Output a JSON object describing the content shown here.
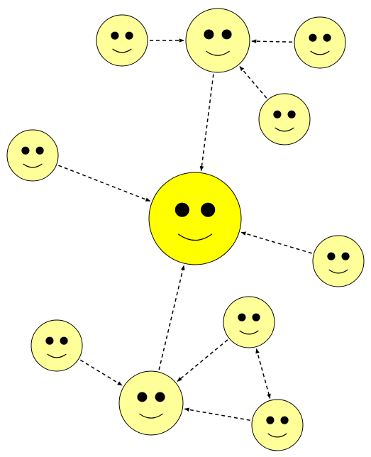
{
  "diagram": {
    "kind": "social-influence-network",
    "colors": {
      "hub_fill": "#FFFF00",
      "node_fill": "#FFFF99",
      "stroke": "#000000",
      "edge": "#000000"
    },
    "nodes": [
      {
        "id": "center",
        "icon": "smiley-face-icon",
        "role": "central-hub"
      },
      {
        "id": "top-hub",
        "icon": "smiley-face-icon",
        "role": "sub-hub"
      },
      {
        "id": "top-left",
        "icon": "smiley-face-icon",
        "role": "person"
      },
      {
        "id": "top-right",
        "icon": "smiley-face-icon",
        "role": "person"
      },
      {
        "id": "top-lower-right",
        "icon": "smiley-face-icon",
        "role": "person"
      },
      {
        "id": "mid-left",
        "icon": "smiley-face-icon",
        "role": "person"
      },
      {
        "id": "mid-right",
        "icon": "smiley-face-icon",
        "role": "person"
      },
      {
        "id": "bottom-hub",
        "icon": "smiley-face-icon",
        "role": "sub-hub"
      },
      {
        "id": "bottom-left",
        "icon": "smiley-face-icon",
        "role": "person"
      },
      {
        "id": "bottom-mid",
        "icon": "smiley-face-icon",
        "role": "person"
      },
      {
        "id": "bottom-right",
        "icon": "smiley-face-icon",
        "role": "person"
      }
    ],
    "edges": [
      {
        "from": "top-left",
        "to": "top-hub",
        "style": "dashed",
        "direction": "forward"
      },
      {
        "from": "top-right",
        "to": "top-hub",
        "style": "dashed",
        "direction": "forward"
      },
      {
        "from": "top-lower-right",
        "to": "top-hub",
        "style": "dashed",
        "direction": "forward"
      },
      {
        "from": "top-hub",
        "to": "center",
        "style": "dashed",
        "direction": "forward"
      },
      {
        "from": "mid-left",
        "to": "center",
        "style": "dashed",
        "direction": "forward"
      },
      {
        "from": "mid-right",
        "to": "center",
        "style": "dashed",
        "direction": "forward"
      },
      {
        "from": "bottom-hub",
        "to": "center",
        "style": "dashed",
        "direction": "forward"
      },
      {
        "from": "bottom-left",
        "to": "bottom-hub",
        "style": "dashed",
        "direction": "forward"
      },
      {
        "from": "bottom-mid",
        "to": "bottom-hub",
        "style": "dashed",
        "direction": "forward"
      },
      {
        "from": "bottom-right",
        "to": "bottom-hub",
        "style": "dashed",
        "direction": "forward"
      },
      {
        "from": "bottom-mid",
        "to": "bottom-right",
        "style": "dashed",
        "direction": "both"
      }
    ]
  }
}
